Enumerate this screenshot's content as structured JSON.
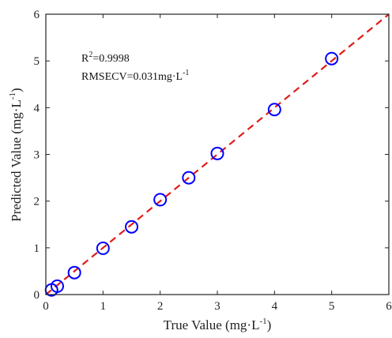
{
  "chart_data": {
    "type": "scatter",
    "xlabel": "True Value (mg·L",
    "xlabel_sup": "-1",
    "xlabel_end": ")",
    "ylabel": "Predicted Value (mg·L",
    "ylabel_sup": "-1",
    "ylabel_end": ")",
    "xlim": [
      0,
      6
    ],
    "ylim": [
      0,
      6
    ],
    "xticks": [
      "0",
      "1",
      "2",
      "3",
      "4",
      "5",
      "6"
    ],
    "yticks": [
      "0",
      "1",
      "2",
      "3",
      "4",
      "5",
      "6"
    ],
    "grid": false,
    "legend": "none",
    "annotations": {
      "r2_prefix": "R",
      "r2_sup": "2",
      "r2_value": "=0.9998",
      "rmse_prefix": "RMSECV=0.031mg·L",
      "rmse_sup": "-1"
    },
    "series": [
      {
        "marker": "circle",
        "color": "#0000ff",
        "x": [
          0.1,
          0.2,
          0.5,
          1.0,
          1.5,
          2.0,
          2.5,
          3.0,
          4.0,
          5.0
        ],
        "y": [
          0.1,
          0.18,
          0.47,
          0.99,
          1.45,
          2.03,
          2.5,
          3.02,
          3.96,
          5.05
        ]
      }
    ],
    "fit_line": {
      "style": "dashed",
      "color": "#e11b1b",
      "x": [
        0,
        6
      ],
      "y": [
        0,
        6
      ]
    }
  }
}
